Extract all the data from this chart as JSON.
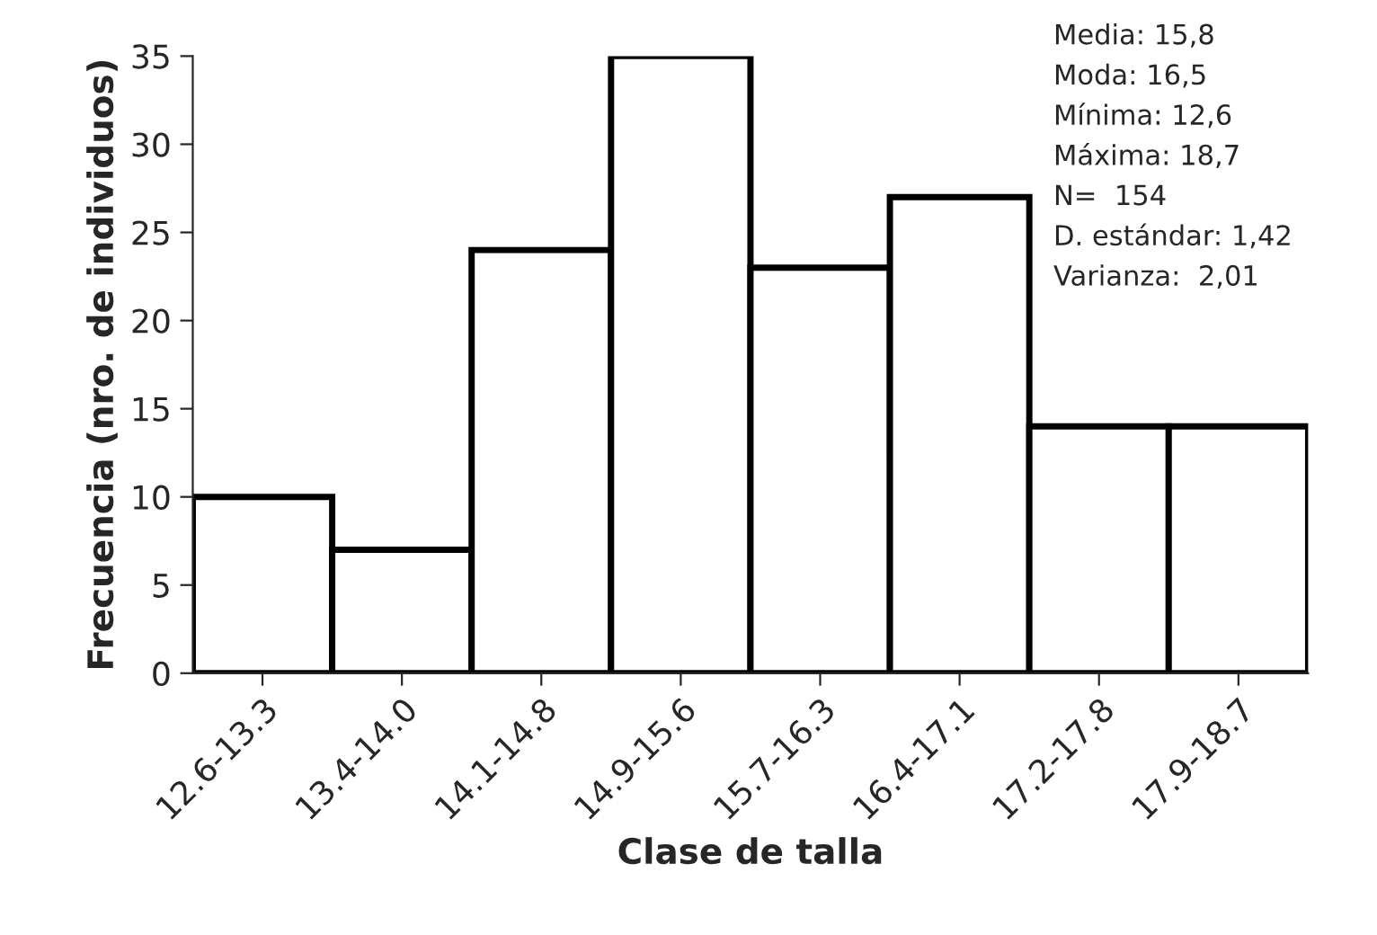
{
  "chart_data": {
    "type": "bar",
    "xlabel": "Clase de talla",
    "ylabel": "Frecuencia (nro. de individuos)",
    "categories": [
      "12.6-13.3",
      "13.4-14.0",
      "14.1-14.8",
      "14.9-15.6",
      "15.7-16.3",
      "16.4-17.1",
      "17.2-17.8",
      "17.9-18.7"
    ],
    "values": [
      10,
      7,
      24,
      35,
      23,
      27,
      14,
      14
    ],
    "color": "#ffffff",
    "ylim": [
      0,
      35
    ],
    "yticks": [
      0,
      5,
      10,
      15,
      20,
      25,
      30,
      35
    ],
    "grid": false,
    "annotations": [
      "Media: 15,8",
      "Moda: 16,5",
      "Mínima: 12,6",
      "Máxima: 18,7",
      "N=  154",
      "D. estándar: 1,42",
      "Varianza:  2,01"
    ]
  }
}
